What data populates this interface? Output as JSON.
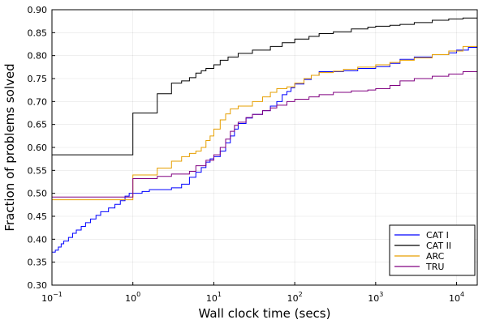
{
  "chart_data": {
    "type": "line",
    "step": true,
    "x_scale": "log",
    "xlabel": "Wall clock time (secs)",
    "ylabel": "Fraction of problems solved",
    "xlim": [
      0.1,
      18000
    ],
    "ylim": [
      0.3,
      0.9
    ],
    "grid": true,
    "legend_position": "bottom-right",
    "x_ticks": [
      {
        "value": 0.1,
        "base": "10",
        "exp": "−1"
      },
      {
        "value": 1,
        "base": "10",
        "exp": "0"
      },
      {
        "value": 10,
        "base": "10",
        "exp": "1"
      },
      {
        "value": 100,
        "base": "10",
        "exp": "2"
      },
      {
        "value": 1000,
        "base": "10",
        "exp": "3"
      },
      {
        "value": 10000,
        "base": "10",
        "exp": "4"
      }
    ],
    "y_ticks": [
      "0.30",
      "0.35",
      "0.40",
      "0.45",
      "0.50",
      "0.55",
      "0.60",
      "0.65",
      "0.70",
      "0.75",
      "0.80",
      "0.85",
      "0.90"
    ],
    "series": [
      {
        "name": "CAT I",
        "color": "#0000ff",
        "points": [
          [
            0.1,
            0.372
          ],
          [
            0.11,
            0.376
          ],
          [
            0.12,
            0.383
          ],
          [
            0.13,
            0.39
          ],
          [
            0.14,
            0.396
          ],
          [
            0.16,
            0.404
          ],
          [
            0.18,
            0.413
          ],
          [
            0.2,
            0.42
          ],
          [
            0.23,
            0.428
          ],
          [
            0.26,
            0.436
          ],
          [
            0.3,
            0.444
          ],
          [
            0.35,
            0.452
          ],
          [
            0.4,
            0.46
          ],
          [
            0.5,
            0.468
          ],
          [
            0.6,
            0.476
          ],
          [
            0.7,
            0.484
          ],
          [
            0.8,
            0.494
          ],
          [
            0.9,
            0.5
          ],
          [
            1,
            0.5
          ],
          [
            1.3,
            0.504
          ],
          [
            1.6,
            0.508
          ],
          [
            2,
            0.508
          ],
          [
            3,
            0.512
          ],
          [
            4,
            0.52
          ],
          [
            5,
            0.535
          ],
          [
            6,
            0.546
          ],
          [
            7,
            0.556
          ],
          [
            8,
            0.568
          ],
          [
            9,
            0.575
          ],
          [
            10,
            0.58
          ],
          [
            12,
            0.592
          ],
          [
            14,
            0.61
          ],
          [
            16,
            0.625
          ],
          [
            18,
            0.64
          ],
          [
            20,
            0.652
          ],
          [
            25,
            0.664
          ],
          [
            30,
            0.672
          ],
          [
            40,
            0.68
          ],
          [
            50,
            0.69
          ],
          [
            60,
            0.7
          ],
          [
            70,
            0.715
          ],
          [
            80,
            0.722
          ],
          [
            90,
            0.73
          ],
          [
            100,
            0.738
          ],
          [
            130,
            0.748
          ],
          [
            160,
            0.757
          ],
          [
            200,
            0.765
          ],
          [
            400,
            0.767
          ],
          [
            600,
            0.772
          ],
          [
            1000,
            0.776
          ],
          [
            1500,
            0.783
          ],
          [
            2000,
            0.792
          ],
          [
            3000,
            0.797
          ],
          [
            5000,
            0.802
          ],
          [
            8000,
            0.806
          ],
          [
            10000,
            0.812
          ],
          [
            14000,
            0.818
          ],
          [
            18000,
            0.82
          ]
        ]
      },
      {
        "name": "CAT II",
        "color": "#000000",
        "points": [
          [
            0.1,
            0.584
          ],
          [
            1,
            0.675
          ],
          [
            2,
            0.717
          ],
          [
            3,
            0.74
          ],
          [
            4,
            0.745
          ],
          [
            5,
            0.752
          ],
          [
            6,
            0.762
          ],
          [
            7,
            0.767
          ],
          [
            8,
            0.772
          ],
          [
            10,
            0.78
          ],
          [
            12,
            0.79
          ],
          [
            15,
            0.797
          ],
          [
            20,
            0.805
          ],
          [
            30,
            0.812
          ],
          [
            50,
            0.82
          ],
          [
            70,
            0.828
          ],
          [
            100,
            0.836
          ],
          [
            150,
            0.842
          ],
          [
            200,
            0.848
          ],
          [
            300,
            0.852
          ],
          [
            500,
            0.858
          ],
          [
            800,
            0.862
          ],
          [
            1000,
            0.864
          ],
          [
            1500,
            0.866
          ],
          [
            2000,
            0.868
          ],
          [
            3000,
            0.872
          ],
          [
            5000,
            0.877
          ],
          [
            8000,
            0.88
          ],
          [
            12000,
            0.882
          ],
          [
            18000,
            0.886
          ]
        ]
      },
      {
        "name": "ARC",
        "color": "#e69f00",
        "points": [
          [
            0.1,
            0.486
          ],
          [
            1,
            0.54
          ],
          [
            2,
            0.555
          ],
          [
            3,
            0.57
          ],
          [
            4,
            0.58
          ],
          [
            5,
            0.587
          ],
          [
            6,
            0.592
          ],
          [
            7,
            0.6
          ],
          [
            8,
            0.615
          ],
          [
            9,
            0.625
          ],
          [
            10,
            0.64
          ],
          [
            12,
            0.66
          ],
          [
            14,
            0.673
          ],
          [
            16,
            0.684
          ],
          [
            20,
            0.69
          ],
          [
            30,
            0.7
          ],
          [
            40,
            0.71
          ],
          [
            50,
            0.72
          ],
          [
            60,
            0.728
          ],
          [
            80,
            0.732
          ],
          [
            100,
            0.74
          ],
          [
            130,
            0.75
          ],
          [
            160,
            0.757
          ],
          [
            200,
            0.763
          ],
          [
            300,
            0.766
          ],
          [
            400,
            0.77
          ],
          [
            600,
            0.775
          ],
          [
            1000,
            0.78
          ],
          [
            1500,
            0.785
          ],
          [
            2000,
            0.79
          ],
          [
            3000,
            0.795
          ],
          [
            5000,
            0.802
          ],
          [
            8000,
            0.81
          ],
          [
            12000,
            0.82
          ],
          [
            18000,
            0.828
          ]
        ]
      },
      {
        "name": "TRU",
        "color": "#800080",
        "points": [
          [
            0.1,
            0.492
          ],
          [
            1,
            0.532
          ],
          [
            2,
            0.537
          ],
          [
            3,
            0.542
          ],
          [
            5,
            0.548
          ],
          [
            6,
            0.56
          ],
          [
            8,
            0.572
          ],
          [
            10,
            0.584
          ],
          [
            12,
            0.6
          ],
          [
            14,
            0.618
          ],
          [
            16,
            0.635
          ],
          [
            18,
            0.648
          ],
          [
            20,
            0.655
          ],
          [
            25,
            0.665
          ],
          [
            30,
            0.672
          ],
          [
            40,
            0.68
          ],
          [
            50,
            0.686
          ],
          [
            60,
            0.692
          ],
          [
            80,
            0.7
          ],
          [
            100,
            0.705
          ],
          [
            150,
            0.71
          ],
          [
            200,
            0.715
          ],
          [
            300,
            0.72
          ],
          [
            500,
            0.723
          ],
          [
            800,
            0.725
          ],
          [
            1000,
            0.728
          ],
          [
            1500,
            0.735
          ],
          [
            2000,
            0.745
          ],
          [
            3000,
            0.75
          ],
          [
            5000,
            0.755
          ],
          [
            8000,
            0.76
          ],
          [
            12000,
            0.765
          ],
          [
            18000,
            0.768
          ]
        ]
      }
    ]
  }
}
